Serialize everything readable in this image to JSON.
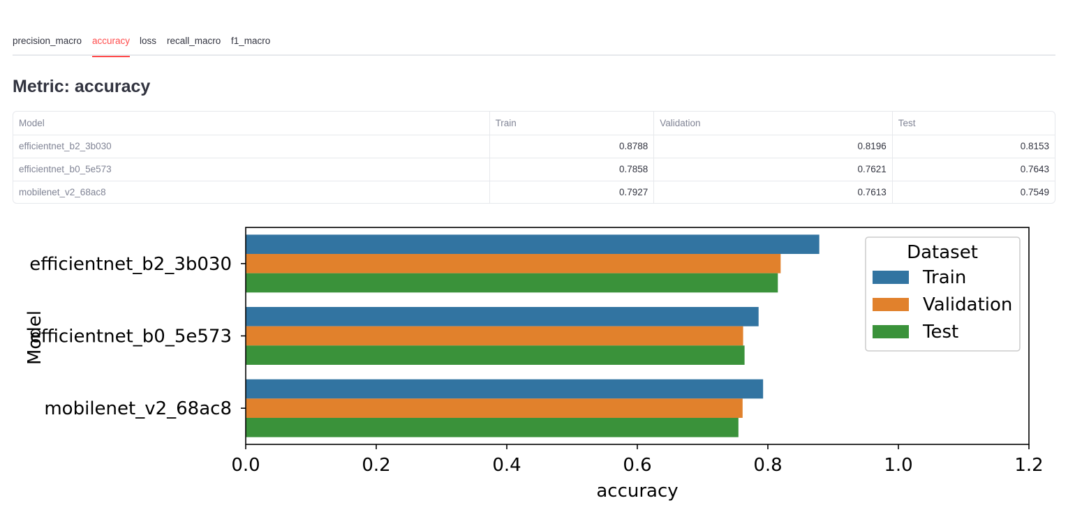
{
  "tabs": [
    "precision_macro",
    "accuracy",
    "loss",
    "recall_macro",
    "f1_macro"
  ],
  "active_tab": "accuracy",
  "title": "Metric: accuracy",
  "table": {
    "headers": [
      "Model",
      "Train",
      "Validation",
      "Test"
    ],
    "rows": [
      [
        "efficientnet_b2_3b030",
        "0.8788",
        "0.8196",
        "0.8153"
      ],
      [
        "efficientnet_b0_5e573",
        "0.7858",
        "0.7621",
        "0.7643"
      ],
      [
        "mobilenet_v2_68ac8",
        "0.7927",
        "0.7613",
        "0.7549"
      ]
    ]
  },
  "colors": {
    "accent": "#ff4b4b",
    "train": "#3274a1",
    "validation": "#e1812c",
    "test": "#3a923a"
  },
  "chart_data": {
    "type": "bar",
    "orientation": "horizontal",
    "categories": [
      "efficientnet_b2_3b030",
      "efficientnet_b0_5e573",
      "mobilenet_v2_68ac8"
    ],
    "series": [
      {
        "name": "Train",
        "values": [
          0.8788,
          0.7858,
          0.7927
        ]
      },
      {
        "name": "Validation",
        "values": [
          0.8196,
          0.7621,
          0.7613
        ]
      },
      {
        "name": "Test",
        "values": [
          0.8153,
          0.7643,
          0.7549
        ]
      }
    ],
    "xlabel": "accuracy",
    "ylabel": "Model",
    "xlim": [
      0.0,
      1.2
    ],
    "xticks": [
      "0.0",
      "0.2",
      "0.4",
      "0.6",
      "0.8",
      "1.0",
      "1.2"
    ],
    "legend_title": "Dataset",
    "legend_position": "top-right",
    "grid": false
  }
}
